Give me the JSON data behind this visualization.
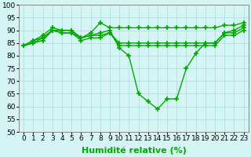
{
  "xlabel": "Humidité relative (%)",
  "xlim": [
    0,
    23
  ],
  "ylim": [
    50,
    100
  ],
  "yticks": [
    50,
    55,
    60,
    65,
    70,
    75,
    80,
    85,
    90,
    95,
    100
  ],
  "xticks": [
    0,
    1,
    2,
    3,
    4,
    5,
    6,
    7,
    8,
    9,
    10,
    11,
    12,
    13,
    14,
    15,
    16,
    17,
    18,
    19,
    20,
    21,
    22,
    23
  ],
  "bg_color": "#d5f5f5",
  "grid_color": "#b0dede",
  "line_color": "#00aa00",
  "line_width": 1.0,
  "marker": "+",
  "markersize": 4,
  "markeredgewidth": 1.2,
  "lines": [
    [
      84,
      86,
      88,
      91,
      90,
      90,
      87,
      89,
      93,
      91,
      91,
      91,
      91,
      91,
      91,
      91,
      91,
      91,
      91,
      91,
      91,
      92,
      92,
      93
    ],
    [
      84,
      86,
      87,
      90,
      90,
      90,
      87,
      88,
      89,
      90,
      83,
      80,
      65,
      62,
      59,
      63,
      63,
      75,
      81,
      85,
      85,
      89,
      90,
      92
    ],
    [
      84,
      85,
      87,
      90,
      89,
      89,
      87,
      88,
      88,
      89,
      85,
      85,
      85,
      85,
      85,
      85,
      85,
      85,
      85,
      85,
      85,
      89,
      89,
      91
    ],
    [
      84,
      85,
      86,
      90,
      89,
      89,
      86,
      87,
      87,
      89,
      84,
      84,
      84,
      84,
      84,
      84,
      84,
      84,
      84,
      84,
      84,
      88,
      88,
      90
    ]
  ],
  "xlabel_fontsize": 8,
  "tick_fontsize": 6.5,
  "xlabel_color": "#00aa00",
  "xlabel_fontweight": "bold"
}
